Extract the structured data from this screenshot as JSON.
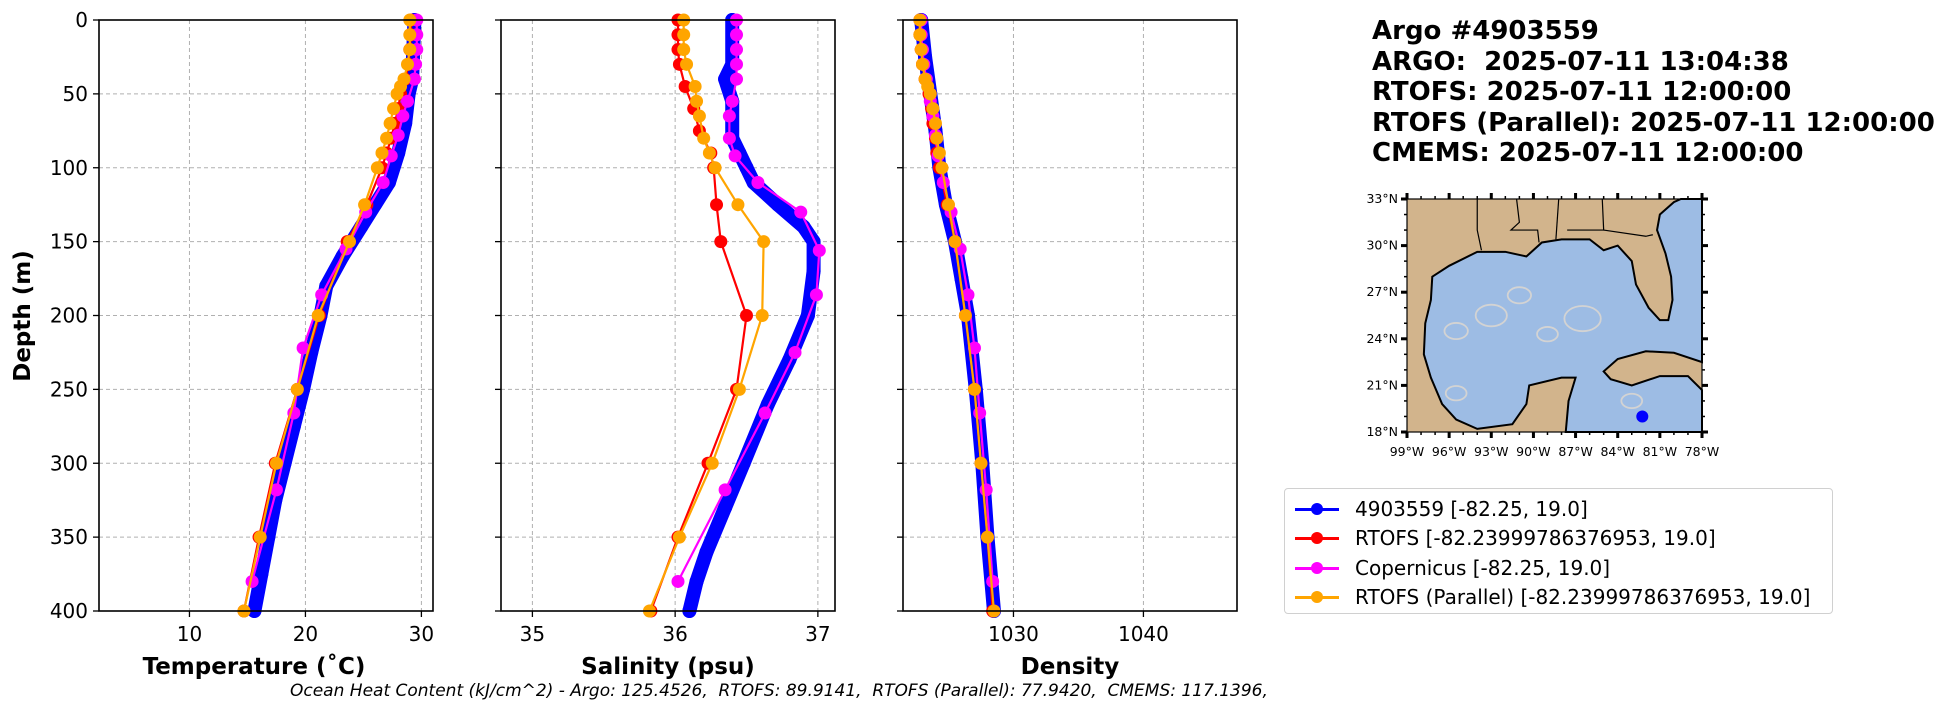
{
  "info": {
    "title": "Argo #4903559",
    "argo_time": "ARGO:  2025-07-11 13:04:38",
    "rtofs_time": "RTOFS: 2025-07-11 12:00:00",
    "rtofs_parallel_time": "RTOFS (Parallel): 2025-07-11 12:00:00",
    "cmems_time": "CMEMS: 2025-07-11 12:00:00"
  },
  "footer": "Ocean Heat Content (kJ/cm^2) - Argo: 125.4526,  RTOFS: 89.9141,  RTOFS (Parallel): 77.9420,  CMEMS: 117.1396,",
  "legend": {
    "placement": "bottom-right",
    "items": [
      {
        "label": "4903559 [-82.25, 19.0]",
        "color": "#0000ff"
      },
      {
        "label": "RTOFS [-82.23999786376953, 19.0]",
        "color": "#ff0000"
      },
      {
        "label": "Copernicus [-82.25, 19.0]",
        "color": "#ff00ff"
      },
      {
        "label": "RTOFS (Parallel) [-82.23999786376953, 19.0]",
        "color": "#ffa500"
      }
    ]
  },
  "map": {
    "lat_labels": [
      "33°N",
      "30°N",
      "27°N",
      "24°N",
      "21°N",
      "18°N"
    ],
    "lon_labels": [
      "99°W",
      "96°W",
      "93°W",
      "90°W",
      "87°W",
      "84°W",
      "81°W",
      "78°W"
    ],
    "lat_range": [
      18,
      33
    ],
    "lon_range": [
      -99,
      -78
    ],
    "float_position": {
      "lon": -82.25,
      "lat": 19.0
    },
    "land_color": "#d2b48c",
    "ocean_color": "#9dbce4",
    "marker_color": "#0000ff"
  },
  "chart_data": [
    {
      "type": "line",
      "title": "",
      "xlabel": "Temperature (˚C)",
      "ylabel": "Depth (m)",
      "xlim": [
        2.2,
        31
      ],
      "ylim": [
        400,
        0
      ],
      "xticks": [
        "10",
        "20",
        "30"
      ],
      "xtick_values": [
        10,
        20,
        30
      ],
      "yticks": [
        "0",
        "50",
        "100",
        "150",
        "200",
        "250",
        "300",
        "350",
        "400"
      ],
      "ytick_values": [
        0,
        50,
        100,
        150,
        200,
        250,
        300,
        350,
        400
      ],
      "grid": true,
      "series": [
        {
          "name": "4903559",
          "color": "#0000ff",
          "dense": true,
          "depth": [
            0,
            20,
            40,
            50,
            70,
            90,
            110,
            125,
            140,
            160,
            180,
            200,
            225,
            250,
            275,
            300,
            325,
            350,
            375,
            400
          ],
          "values": [
            29.4,
            29.3,
            29.2,
            28.9,
            28.6,
            28.0,
            27.2,
            26.0,
            24.8,
            23.2,
            21.8,
            21.3,
            20.5,
            19.8,
            19.0,
            18.2,
            17.4,
            16.8,
            16.2,
            15.6
          ]
        },
        {
          "name": "RTOFS",
          "color": "#ff0000",
          "depth": [
            0,
            10,
            20,
            30,
            40,
            50,
            60,
            70,
            80,
            90,
            100,
            125,
            150,
            200,
            250,
            300,
            350,
            400
          ],
          "values": [
            29.1,
            29.1,
            29.0,
            28.9,
            28.6,
            28.2,
            28.0,
            27.7,
            27.4,
            27.0,
            26.6,
            25.3,
            23.6,
            21.2,
            19.3,
            17.4,
            16.0,
            14.7
          ]
        },
        {
          "name": "Copernicus",
          "color": "#ff00ff",
          "depth": [
            0,
            10,
            20,
            30,
            40,
            55,
            65,
            78,
            92,
            110,
            130,
            155,
            186,
            222,
            266,
            318,
            380
          ],
          "values": [
            29.6,
            29.6,
            29.6,
            29.5,
            29.4,
            28.8,
            28.4,
            28.0,
            27.4,
            26.7,
            25.2,
            23.5,
            21.4,
            19.8,
            19.0,
            17.5,
            15.4
          ]
        },
        {
          "name": "RTOFS (Parallel)",
          "color": "#ffa500",
          "depth": [
            0,
            10,
            20,
            30,
            40,
            45,
            50,
            60,
            70,
            80,
            90,
            100,
            125,
            150,
            200,
            250,
            300,
            350,
            400
          ],
          "values": [
            29.0,
            29.0,
            29.0,
            28.8,
            28.5,
            28.2,
            27.9,
            27.6,
            27.3,
            27.0,
            26.6,
            26.2,
            25.1,
            23.8,
            21.1,
            19.3,
            17.5,
            16.1,
            14.7
          ]
        }
      ]
    },
    {
      "type": "line",
      "title": "",
      "xlabel": "Salinity (psu)",
      "ylabel": "",
      "xlim": [
        34.78,
        37.12
      ],
      "ylim": [
        400,
        0
      ],
      "xticks": [
        "35",
        "36",
        "37"
      ],
      "xtick_values": [
        35,
        36,
        37
      ],
      "grid": true,
      "series": [
        {
          "name": "4903559",
          "color": "#0000ff",
          "dense": true,
          "depth": [
            0,
            30,
            40,
            55,
            80,
            90,
            100,
            110,
            125,
            140,
            150,
            170,
            200,
            230,
            260,
            300,
            330,
            360,
            380,
            400
          ],
          "values": [
            36.4,
            36.4,
            36.35,
            36.4,
            36.4,
            36.45,
            36.5,
            36.55,
            36.72,
            36.9,
            36.97,
            36.97,
            36.93,
            36.8,
            36.65,
            36.48,
            36.35,
            36.22,
            36.15,
            36.1
          ]
        },
        {
          "name": "RTOFS",
          "color": "#ff0000",
          "depth": [
            0,
            10,
            20,
            30,
            45,
            60,
            75,
            90,
            100,
            125,
            150,
            200,
            250,
            300,
            350,
            400
          ],
          "values": [
            36.02,
            36.02,
            36.02,
            36.03,
            36.07,
            36.13,
            36.17,
            36.25,
            36.27,
            36.29,
            36.32,
            36.5,
            36.43,
            36.23,
            36.02,
            35.83
          ]
        },
        {
          "name": "Copernicus",
          "color": "#ff00ff",
          "depth": [
            0,
            10,
            20,
            30,
            40,
            55,
            65,
            80,
            92,
            110,
            130,
            156,
            186,
            225,
            266,
            318,
            380
          ],
          "values": [
            36.43,
            36.43,
            36.43,
            36.43,
            36.43,
            36.4,
            36.38,
            36.38,
            36.42,
            36.58,
            36.88,
            37.01,
            36.99,
            36.84,
            36.63,
            36.35,
            36.02
          ]
        },
        {
          "name": "RTOFS (Parallel)",
          "color": "#ffa500",
          "depth": [
            0,
            10,
            20,
            30,
            45,
            55,
            65,
            80,
            90,
            100,
            125,
            150,
            200,
            250,
            300,
            350,
            400
          ],
          "values": [
            36.06,
            36.06,
            36.06,
            36.08,
            36.14,
            36.15,
            36.17,
            36.2,
            36.24,
            36.28,
            36.44,
            36.62,
            36.61,
            36.45,
            36.26,
            36.03,
            35.82
          ]
        }
      ]
    },
    {
      "type": "line",
      "title": "",
      "xlabel": "Density",
      "ylabel": "",
      "xlim": [
        1021.5,
        1047.2
      ],
      "ylim": [
        400,
        0
      ],
      "xticks": [
        "1030",
        "1040"
      ],
      "xtick_values": [
        1030,
        1040
      ],
      "grid": true,
      "series": [
        {
          "name": "4903559",
          "color": "#0000ff",
          "dense": true,
          "depth": [
            0,
            25,
            50,
            75,
            100,
            125,
            150,
            175,
            200,
            250,
            300,
            350,
            400
          ],
          "values": [
            1022.9,
            1023.2,
            1023.6,
            1024.0,
            1024.3,
            1024.8,
            1025.5,
            1026.0,
            1026.5,
            1027.1,
            1027.6,
            1028.0,
            1028.5
          ]
        },
        {
          "name": "RTOFS",
          "color": "#ff0000",
          "depth": [
            0,
            10,
            20,
            30,
            40,
            50,
            60,
            70,
            80,
            90,
            100,
            125,
            150,
            200,
            250,
            300,
            350,
            400
          ],
          "values": [
            1022.8,
            1022.8,
            1022.9,
            1023.0,
            1023.2,
            1023.5,
            1023.7,
            1023.8,
            1024.0,
            1024.1,
            1024.3,
            1024.9,
            1025.5,
            1026.3,
            1027.0,
            1027.5,
            1028.0,
            1028.4
          ]
        },
        {
          "name": "Copernicus",
          "color": "#ff00ff",
          "depth": [
            0,
            10,
            20,
            30,
            40,
            55,
            65,
            78,
            92,
            110,
            130,
            155,
            186,
            222,
            266,
            318,
            380
          ],
          "values": [
            1022.9,
            1022.9,
            1023.0,
            1023.1,
            1023.3,
            1023.6,
            1023.8,
            1024.0,
            1024.2,
            1024.6,
            1025.2,
            1025.9,
            1026.5,
            1027.0,
            1027.4,
            1027.9,
            1028.4
          ]
        },
        {
          "name": "RTOFS (Parallel)",
          "color": "#ffa500",
          "depth": [
            0,
            10,
            20,
            30,
            40,
            45,
            50,
            60,
            70,
            80,
            90,
            100,
            125,
            150,
            200,
            250,
            300,
            350,
            400
          ],
          "values": [
            1022.8,
            1022.8,
            1022.9,
            1023.0,
            1023.2,
            1023.4,
            1023.6,
            1023.8,
            1024.0,
            1024.1,
            1024.3,
            1024.5,
            1025.0,
            1025.5,
            1026.3,
            1027.0,
            1027.5,
            1028.0,
            1028.5
          ]
        }
      ]
    }
  ]
}
